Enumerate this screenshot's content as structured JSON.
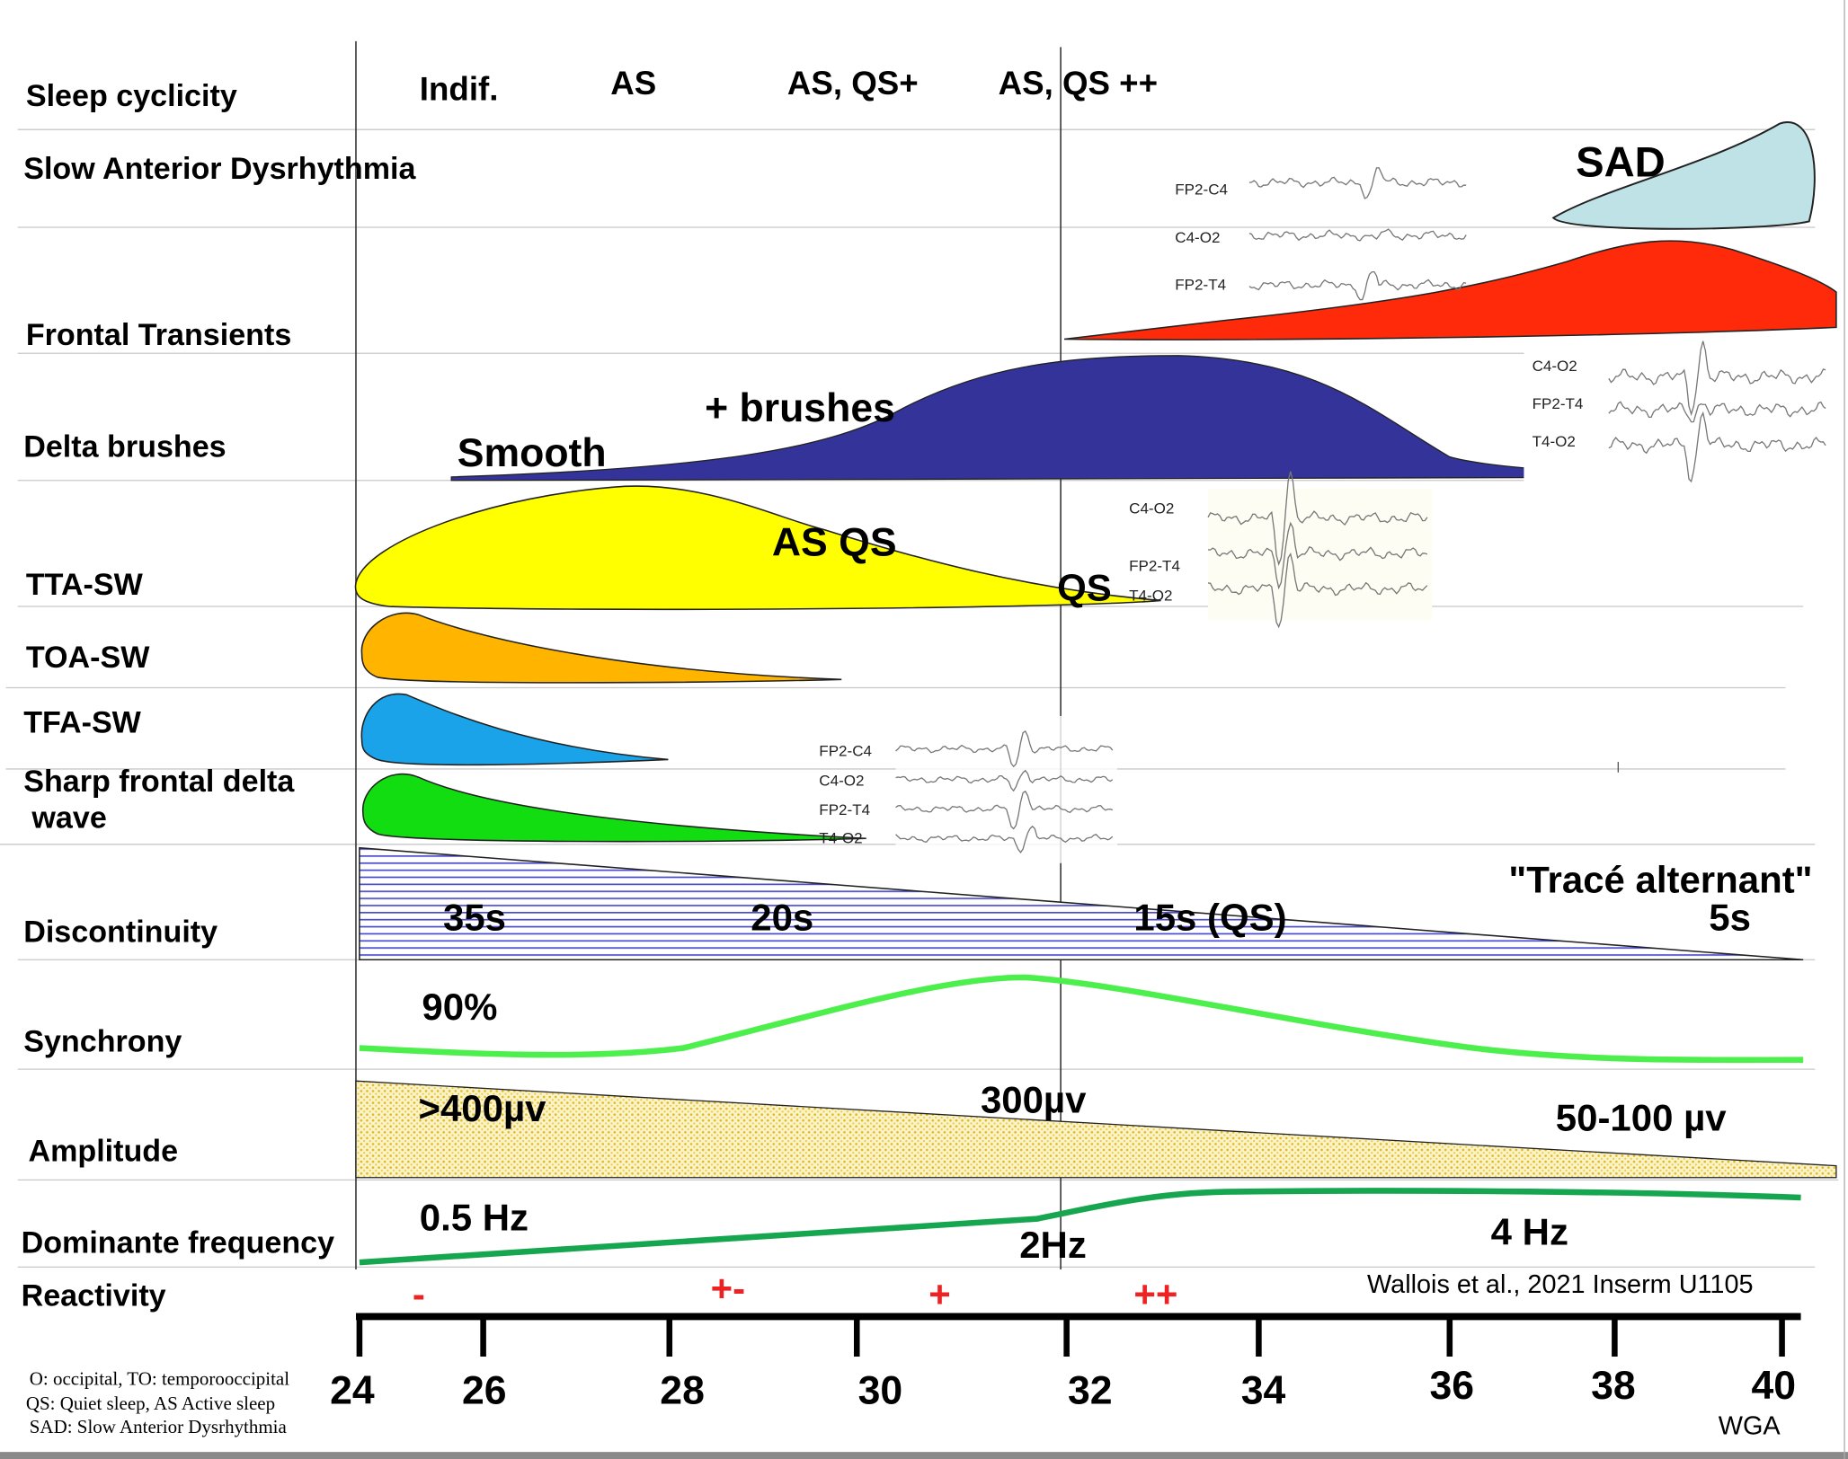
{
  "rows": {
    "sleep_cyclicity": "Sleep cyclicity",
    "sad": "Slow Anterior Dysrhythmia",
    "frontal_transients": "Frontal Transients",
    "delta_brushes": "Delta brushes",
    "tta_sw": "TTA-SW",
    "toa_sw": "TOA-SW",
    "tfa_sw": "TFA-SW",
    "sharp_frontal_line1": "Sharp frontal delta",
    "sharp_frontal_line2": "wave",
    "discontinuity": "Discontinuity",
    "synchrony": "Synchrony",
    "amplitude": "Amplitude",
    "dominant_frequency": "Dominante frequency",
    "reactivity": "Reactivity"
  },
  "sleep_stages": [
    "Indif.",
    "AS",
    "AS, QS+",
    "AS, QS ++"
  ],
  "shape_labels": {
    "sad": "SAD",
    "brushes": "+ brushes",
    "smooth": "Smooth",
    "as_qs": "AS QS",
    "qs": "QS"
  },
  "eeg_panels": [
    {
      "channels": [
        "FP2-C4",
        "C4-O2",
        "FP2-T4"
      ]
    },
    {
      "channels": [
        "C4-O2",
        "FP2-T4",
        "T4-O2"
      ]
    },
    {
      "channels": [
        "C4-O2",
        "FP2-T4",
        "T4-O2"
      ]
    },
    {
      "channels": [
        "FP2-C4",
        "C4-O2",
        "FP2-T4",
        "T4-O2"
      ]
    }
  ],
  "discontinuity": {
    "v1": "35s",
    "v2": "20s",
    "v3": "15s (QS)",
    "trace_alternant": "\"Tracé alternant\"",
    "v4": "5s"
  },
  "synchrony": {
    "value": "90%"
  },
  "amplitude": {
    "v1": ">400µv",
    "v2": "300µv",
    "v3": "50-100 µv"
  },
  "frequency": {
    "v1": "0.5  Hz",
    "v2": "2Hz",
    "v3": "4 Hz"
  },
  "reactivity": [
    "-",
    "+-",
    "+",
    "++"
  ],
  "citation": "Wallois et al., 2021 Inserm U1105",
  "axis": {
    "ticks": [
      "24",
      "26",
      "28",
      "30",
      "32",
      "34",
      "36",
      "38",
      "40"
    ],
    "unit": "WGA"
  },
  "legend": [
    "O: occipital, TO: temporooccipital",
    "QS: Quiet sleep, AS Active sleep",
    "SAD:  Slow Anterior Dysrhythmia"
  ],
  "colors": {
    "sad": "#bfe2e6",
    "frontal": "#ff2a0a",
    "delta": "#333399",
    "tta": "#ffff00",
    "toa": "#ffb400",
    "tfa": "#1aa3e8",
    "sharp": "#11dd11",
    "synchrony": "#4def4d",
    "frequency": "#17a650",
    "reactivity": "#ee2222"
  }
}
